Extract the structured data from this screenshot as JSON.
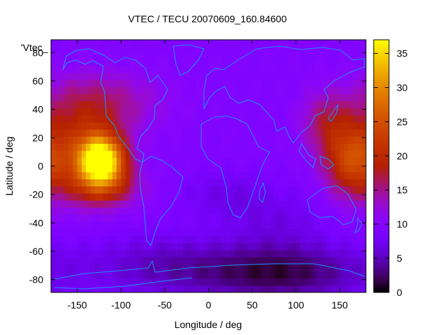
{
  "chart_data": {
    "type": "heatmap",
    "title": "VTEC / TECU 20070609_160.84600",
    "xlabel": "Longitude / deg",
    "ylabel": "Latitude / deg",
    "key_label": "'Vtec_",
    "xlim": [
      -180,
      180
    ],
    "ylim": [
      -89,
      89
    ],
    "x_ticks": [
      -150,
      -100,
      -50,
      0,
      50,
      100,
      150
    ],
    "y_ticks": [
      -80,
      -60,
      -40,
      -20,
      0,
      20,
      40,
      60,
      80
    ],
    "colorbar": {
      "range": [
        0,
        37
      ],
      "ticks": [
        0,
        5,
        10,
        15,
        20,
        25,
        30,
        35
      ],
      "palette": "gnuplot-black-blue-purple-red-orange-yellow"
    },
    "grid": false,
    "field": {
      "description": "",
      "background_vtec": 9.5,
      "features": [
        {
          "lon": -122,
          "lat": 4,
          "sigma_lon": 18,
          "sigma_lat": 12,
          "amplitude": 26
        },
        {
          "lon": -140,
          "lat": 10,
          "sigma_lon": 28,
          "sigma_lat": 20,
          "amplitude": 10
        },
        {
          "lon": -120,
          "lat": -15,
          "sigma_lon": 30,
          "sigma_lat": 10,
          "amplitude": 7
        },
        {
          "lon": 165,
          "lat": 5,
          "sigma_lon": 22,
          "sigma_lat": 18,
          "amplitude": 14
        },
        {
          "lon": 135,
          "lat": 30,
          "sigma_lon": 20,
          "sigma_lat": 15,
          "amplitude": 6
        },
        {
          "lon": -130,
          "lat": 45,
          "sigma_lon": 50,
          "sigma_lat": 15,
          "amplitude": 6
        },
        {
          "lon": 80,
          "lat": -75,
          "sigma_lon": 70,
          "sigma_lat": 14,
          "amplitude": -8
        },
        {
          "lon": 20,
          "lat": -20,
          "sigma_lon": 35,
          "sigma_lat": 12,
          "amplitude": -2.5
        },
        {
          "lon": 80,
          "lat": -40,
          "sigma_lon": 40,
          "sigma_lat": 15,
          "amplitude": -2.5
        },
        {
          "lon": -60,
          "lat": -70,
          "sigma_lon": 60,
          "sigma_lat": 15,
          "amplitude": -4
        }
      ]
    }
  }
}
